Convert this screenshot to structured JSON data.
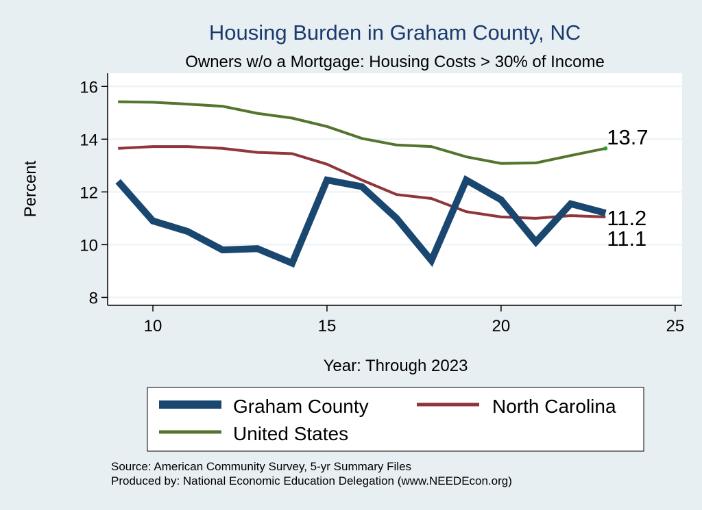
{
  "chart_data": {
    "type": "line",
    "title": "Housing Burden in Graham County, NC",
    "subtitle": "Owners w/o a Mortgage: Housing Costs > 30% of Income",
    "xlabel": "Year: Through 2023",
    "ylabel": "Percent",
    "xlim": [
      8.7,
      25.2
    ],
    "ylim": [
      7.7,
      16.5
    ],
    "xticks": [
      10,
      15,
      20,
      25
    ],
    "yticks": [
      8,
      10,
      12,
      14,
      16
    ],
    "grid": true,
    "legend_position": "bottom",
    "x": [
      9,
      10,
      11,
      12,
      13,
      14,
      15,
      16,
      17,
      18,
      19,
      20,
      21,
      22,
      23
    ],
    "series": [
      {
        "name": "Graham County",
        "color": "#1a476f",
        "values": [
          12.4,
          10.9,
          10.5,
          9.8,
          9.85,
          9.3,
          12.45,
          12.2,
          11.0,
          9.4,
          12.45,
          11.7,
          10.1,
          11.55,
          11.2
        ],
        "end_label": "11.2"
      },
      {
        "name": "North Carolina",
        "color": "#90353b",
        "values": [
          13.65,
          13.72,
          13.72,
          13.65,
          13.5,
          13.45,
          13.05,
          12.45,
          11.9,
          11.75,
          11.25,
          11.05,
          11.0,
          11.1,
          11.05
        ],
        "end_label": "11.1"
      },
      {
        "name": "United States",
        "color": "#55752f",
        "values": [
          15.42,
          15.4,
          15.33,
          15.25,
          14.98,
          14.8,
          14.48,
          14.03,
          13.78,
          13.72,
          13.33,
          13.08,
          13.1,
          13.38,
          13.65
        ],
        "end_label": "13.7"
      }
    ]
  },
  "notes": {
    "source": "Source: American Community Survey, 5-yr Summary Files",
    "produced_by": "Produced by: National Economic Education Delegation (www.NEEDEcon.org)"
  },
  "colors": {
    "background": "#e8eff3",
    "plot_background": "#ffffff",
    "grid": "#eaf2f3",
    "text": "#000000",
    "title": "#1a3a6e"
  }
}
